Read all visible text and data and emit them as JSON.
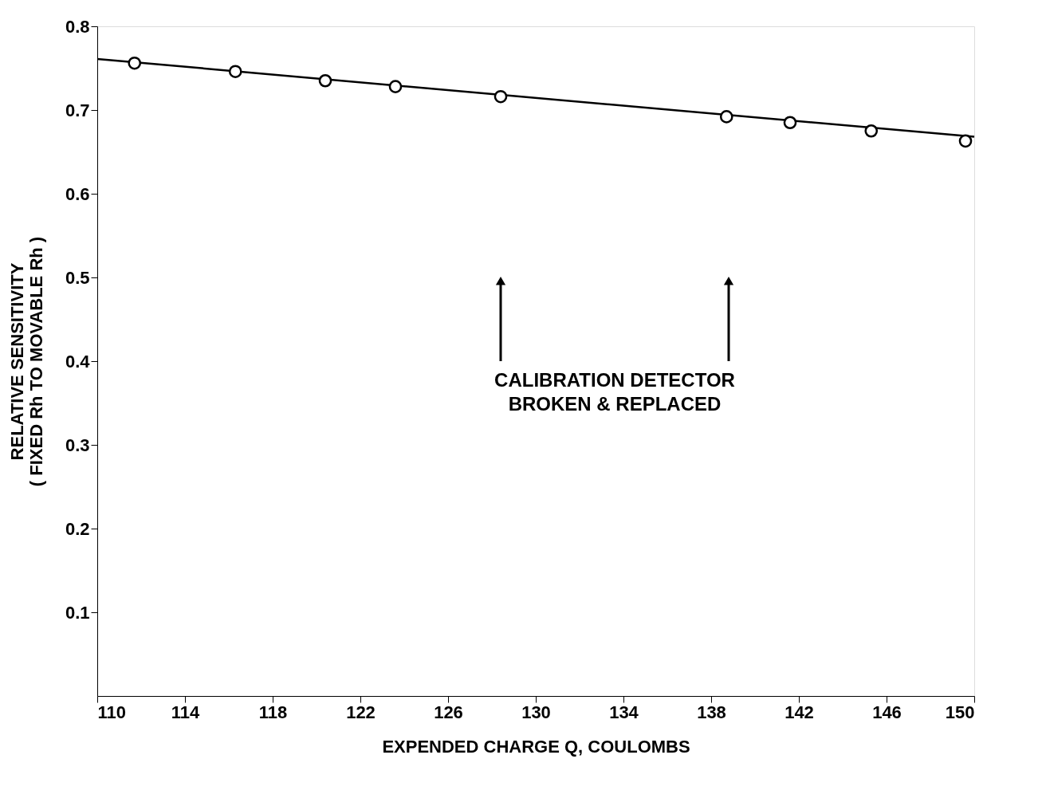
{
  "chart_data": {
    "type": "scatter",
    "xlabel": "EXPENDED CHARGE Q, COULOMBS",
    "ylabel": "RELATIVE SENSITIVITY\n( FIXED Rh TO MOVABLE Rh )",
    "grid": false,
    "xlim": [
      110,
      150
    ],
    "xticks": [
      110,
      114,
      118,
      122,
      126,
      130,
      134,
      138,
      142,
      146,
      150
    ],
    "ylim": [
      0,
      0.8
    ],
    "yticks": [
      0.1,
      0.2,
      0.3,
      0.4,
      0.5,
      0.6,
      0.7,
      0.8
    ],
    "series": [
      {
        "marker": "circle",
        "color": "#000000",
        "x": [
          111.7,
          116.3,
          120.4,
          123.6,
          128.4,
          138.7,
          141.6,
          145.3,
          149.6
        ],
        "values": [
          0.756,
          0.746,
          0.735,
          0.728,
          0.716,
          0.692,
          0.685,
          0.675,
          0.663
        ]
      },
      {
        "type": "line",
        "marker": "none",
        "line_style": "solid",
        "color": "#000000",
        "x": [
          110,
          150
        ],
        "values": [
          0.761,
          0.668
        ]
      }
    ],
    "annotations": [
      "CALIBRATION DETECTOR\nBROKEN & REPLACED"
    ]
  }
}
